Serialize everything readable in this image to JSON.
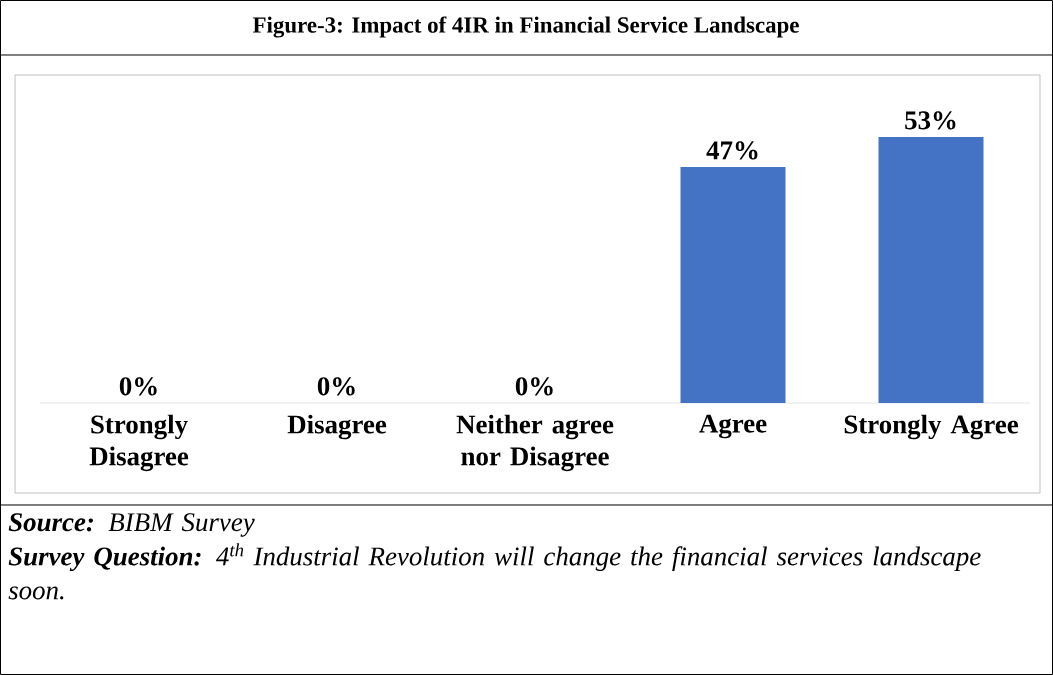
{
  "chart_data": {
    "type": "bar",
    "title": "Figure-3: Impact of 4IR in Financial Service Landscape",
    "categories": [
      "Strongly Disagree",
      "Disagree",
      "Neither agree nor Disagree",
      "Agree",
      "Strongly Agree"
    ],
    "values": [
      0,
      0,
      0,
      47,
      53
    ],
    "color": "#4472c4",
    "data_labels": true,
    "value_labels": [
      "0%",
      "0%",
      "0%",
      "47%",
      "53%"
    ],
    "annotations": [
      "**Source:** BIBM Survey",
      "**Survey Question:** 4$^{th}$ Industrial Revolution will change the financial services landscape soon."
    ]
  }
}
